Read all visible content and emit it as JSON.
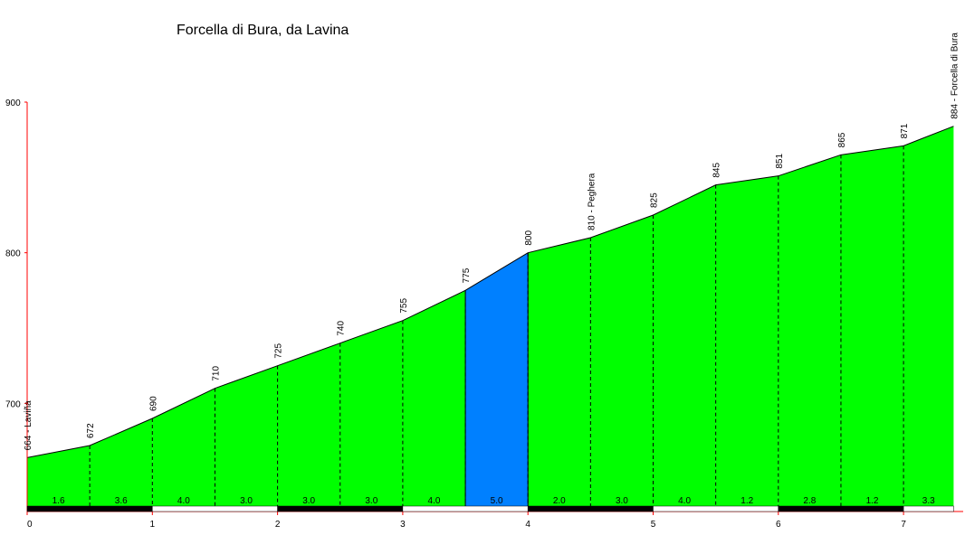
{
  "chart_data": {
    "type": "area",
    "title": "Forcella di Bura, da Lavina",
    "xlabel": "",
    "ylabel": "",
    "xlim": [
      0,
      7.4
    ],
    "ylim": [
      630,
      900
    ],
    "yticks": [
      700,
      800,
      900
    ],
    "xticks": [
      0,
      1,
      2,
      3,
      4,
      5,
      6,
      7
    ],
    "points": [
      {
        "x": 0.0,
        "y": 664,
        "label": "664 - Laviña"
      },
      {
        "x": 0.5,
        "y": 672,
        "label": "672"
      },
      {
        "x": 1.0,
        "y": 690,
        "label": "690"
      },
      {
        "x": 1.5,
        "y": 710,
        "label": "710"
      },
      {
        "x": 2.0,
        "y": 725,
        "label": "725"
      },
      {
        "x": 2.5,
        "y": 740,
        "label": "740"
      },
      {
        "x": 3.0,
        "y": 755,
        "label": "755"
      },
      {
        "x": 3.5,
        "y": 775,
        "label": "775"
      },
      {
        "x": 4.0,
        "y": 800,
        "label": "800"
      },
      {
        "x": 4.5,
        "y": 810,
        "label": "810 - Peghera"
      },
      {
        "x": 5.0,
        "y": 825,
        "label": "825"
      },
      {
        "x": 5.5,
        "y": 845,
        "label": "845"
      },
      {
        "x": 6.0,
        "y": 851,
        "label": "851"
      },
      {
        "x": 6.5,
        "y": 865,
        "label": "865"
      },
      {
        "x": 7.0,
        "y": 871,
        "label": "871"
      },
      {
        "x": 7.4,
        "y": 884,
        "label": "884 - Forcella di Bura"
      }
    ],
    "segment_gradients": [
      "1.6",
      "3.6",
      "4.0",
      "3.0",
      "3.0",
      "3.0",
      "4.0",
      "5.0",
      "2.0",
      "3.0",
      "4.0",
      "1.2",
      "2.8",
      "1.2",
      "3.3"
    ],
    "segment_colors": [
      "#00ff00",
      "#00ff00",
      "#00ff00",
      "#00ff00",
      "#00ff00",
      "#00ff00",
      "#00ff00",
      "#0080ff",
      "#00ff00",
      "#00ff00",
      "#00ff00",
      "#00ff00",
      "#00ff00",
      "#00ff00",
      "#00ff00"
    ],
    "grid": false,
    "legend": "none"
  },
  "colors": {
    "axis": "#ff0000",
    "outline": "#000000",
    "km_bar_dark": "#000000",
    "km_bar_light": "#ffffff"
  }
}
